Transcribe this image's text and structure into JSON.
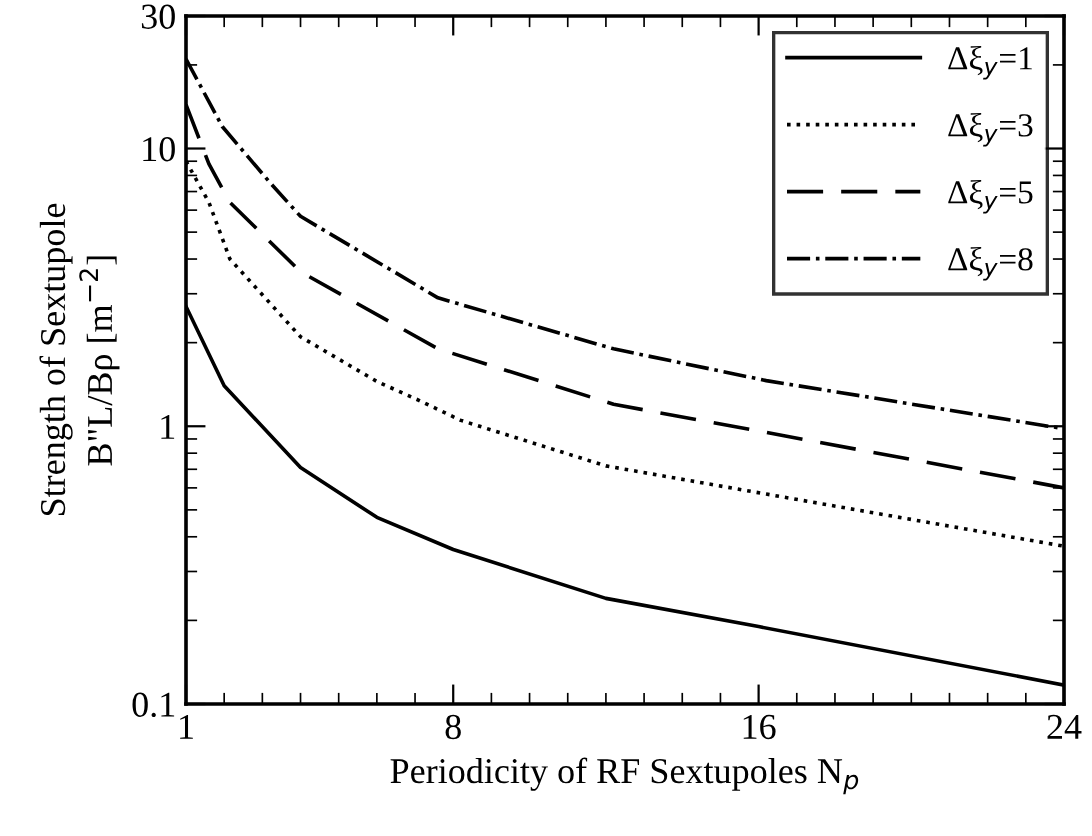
{
  "chart_data": {
    "type": "line",
    "xlabel": "Periodicity of RF Sextupoles N$_{p}$",
    "ylabel": "Strength of Sextupole\nB\"L/Bρ [m$^{−2}$]",
    "log": "y",
    "xlim": [
      1,
      24
    ],
    "ylim": [
      0.1,
      30
    ],
    "xticks": [
      1,
      8,
      16,
      24
    ],
    "yticks": [
      0.1,
      1,
      10,
      30
    ],
    "legend": "top right",
    "grid": false,
    "series": [
      {
        "name": "Δξ$_{y}$=1",
        "color": "#000000",
        "line_style": "solid",
        "x": [
          1,
          2,
          4,
          6,
          8,
          12,
          16,
          24
        ],
        "values": [
          2.7,
          1.4,
          0.71,
          0.47,
          0.36,
          0.24,
          0.19,
          0.117
        ]
      },
      {
        "name": "Δξ$_{y}$=3",
        "color": "#000000",
        "line_style": "dotted",
        "x": [
          1,
          1.6,
          2.15,
          4,
          6,
          7.1,
          8.2,
          12,
          16.2,
          24
        ],
        "values": [
          9,
          6.4,
          4.0,
          2.1,
          1.45,
          1.24,
          1.05,
          0.72,
          0.57,
          0.37
        ]
      },
      {
        "name": "Δξ$_{y}$=5",
        "color": "#000000",
        "line_style": "dashed",
        "x": [
          1,
          1.6,
          2.15,
          4,
          7.6,
          12.2,
          16.2,
          24
        ],
        "values": [
          14.4,
          8.8,
          6.4,
          3.6,
          1.9,
          1.2,
          0.95,
          0.6
        ]
      },
      {
        "name": "Δξ$_{y}$=8",
        "color": "#000000",
        "line_style": "dashdot",
        "x": [
          1,
          1.95,
          3.25,
          4,
          7.6,
          12.2,
          16.2,
          24
        ],
        "values": [
          21,
          12,
          7.4,
          5.7,
          2.9,
          1.9,
          1.46,
          0.98
        ]
      }
    ]
  }
}
